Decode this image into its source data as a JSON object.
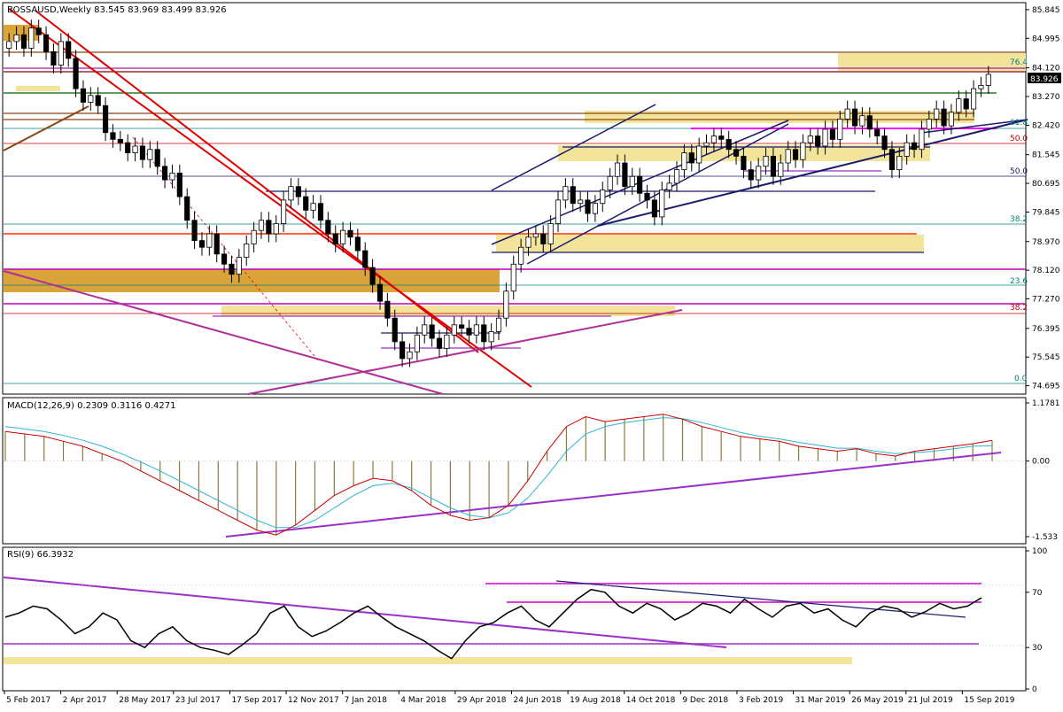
{
  "header": {
    "main": "BOSSAUSD,Weekly  83.545 83.969 83.499 83.926",
    "macd": "MACD(12,26,9) 0.2309 0.3116 0.4271",
    "rsi": "RSI(9) 66.3932"
  },
  "price_axis": {
    "ticks": [
      "85.845",
      "84.995",
      "84.120",
      "83.270",
      "82.420",
      "81.545",
      "80.695",
      "79.845",
      "78.970",
      "78.120",
      "77.270",
      "76.395",
      "75.545",
      "74.695"
    ],
    "current": "83.926"
  },
  "macd_axis": {
    "ticks": [
      "1.1781",
      "0.00",
      "-1.533"
    ]
  },
  "rsi_axis": {
    "ticks": [
      "100",
      "70",
      "30",
      "0"
    ]
  },
  "time_axis": [
    "5 Feb 2017",
    "2 Apr 2017",
    "28 May 2017",
    "23 Jul 2017",
    "17 Sep 2017",
    "12 Nov 2017",
    "7 Jan 2018",
    "4 Mar 2018",
    "29 Apr 2018",
    "24 Jun 2018",
    "19 Aug 2018",
    "14 Oct 2018",
    "9 Dec 2018",
    "3 Feb 2019",
    "31 Mar 2019",
    "26 May 2019",
    "21 Jul 2019",
    "15 Sep 2019"
  ],
  "fib_labels": {
    "right": [
      "76.4",
      "61.8",
      "50.0",
      "50.0",
      "38.2",
      "23.6",
      "38.2",
      "0.0"
    ]
  },
  "colors": {
    "bull": "#ffffff",
    "bear": "#000000",
    "fibzone": "#f2e49a",
    "orangezone": "#d9a53a",
    "redline": "#ff0000",
    "purple": "#9b30c8",
    "navy": "#1a1a6e",
    "macd_hist": "#8a7a3a",
    "signal": "#2eb4d6",
    "macd_line": "#cc0000"
  },
  "chart_data": [
    {
      "type": "candlestick",
      "title": "BOSSAUSD,Weekly",
      "ylim": [
        74.5,
        86.0
      ],
      "y_ticks": [
        85.845,
        84.995,
        84.12,
        83.27,
        82.42,
        81.545,
        80.695,
        79.845,
        78.97,
        78.12,
        77.27,
        76.395,
        75.545,
        74.695
      ],
      "x_labels": [
        "5 Feb 2017",
        "2 Apr 2017",
        "28 May 2017",
        "23 Jul 2017",
        "17 Sep 2017",
        "12 Nov 2017",
        "7 Jan 2018",
        "4 Mar 2018",
        "29 Apr 2018",
        "24 Jun 2018",
        "19 Aug 2018",
        "14 Oct 2018",
        "9 Dec 2018",
        "3 Feb 2019",
        "31 Mar 2019",
        "26 May 2019",
        "21 Jul 2019",
        "15 Sep 2019"
      ],
      "close": [
        84.9,
        85.1,
        84.7,
        85.3,
        85.1,
        84.6,
        84.2,
        84.9,
        84.4,
        83.5,
        83.1,
        83.3,
        83.0,
        82.2,
        82.0,
        81.9,
        81.6,
        81.8,
        81.4,
        81.7,
        81.2,
        80.8,
        81.0,
        80.3,
        79.6,
        79.0,
        78.8,
        79.2,
        78.6,
        78.3,
        78.0,
        78.5,
        78.9,
        79.3,
        79.6,
        79.2,
        79.5,
        80.2,
        80.6,
        80.3,
        79.9,
        80.1,
        79.6,
        79.2,
        78.9,
        79.3,
        79.1,
        78.7,
        78.2,
        77.7,
        77.2,
        76.7,
        76.0,
        75.5,
        75.7,
        76.2,
        76.5,
        76.1,
        75.8,
        76.2,
        76.5,
        76.4,
        76.2,
        76.5,
        76.0,
        76.3,
        76.7,
        77.5,
        78.3,
        78.8,
        79.1,
        79.2,
        78.9,
        79.5,
        80.2,
        80.6,
        80.1,
        80.2,
        79.8,
        80.1,
        80.5,
        80.9,
        81.3,
        80.6,
        80.9,
        80.4,
        80.2,
        79.7,
        80.5,
        80.7,
        81.1,
        81.6,
        81.3,
        81.8,
        81.9,
        82.1,
        82.0,
        81.7,
        81.5,
        81.1,
        80.8,
        81.2,
        81.5,
        80.9,
        81.3,
        81.7,
        81.4,
        81.9,
        82.1,
        81.8,
        82.3,
        82.0,
        82.6,
        82.9,
        82.4,
        82.7,
        82.3,
        82.1,
        81.7,
        81.1,
        81.5,
        81.9,
        81.7,
        82.3,
        82.6,
        82.9,
        82.4,
        82.8,
        83.2,
        82.9,
        83.5,
        83.6,
        83.926
      ]
    },
    {
      "type": "line",
      "title": "MACD(12,26,9)",
      "ylim": [
        -1.533,
        1.1781
      ],
      "series": [
        {
          "name": "MACD",
          "values": [
            0.6,
            0.55,
            0.5,
            0.4,
            0.3,
            0.15,
            0.0,
            -0.2,
            -0.4,
            -0.6,
            -0.8,
            -1.0,
            -1.2,
            -1.4,
            -1.5,
            -1.3,
            -1.0,
            -0.7,
            -0.5,
            -0.35,
            -0.4,
            -0.6,
            -0.9,
            -1.1,
            -1.2,
            -1.15,
            -0.9,
            -0.4,
            0.2,
            0.7,
            0.9,
            0.8,
            0.85,
            0.9,
            0.95,
            0.85,
            0.7,
            0.6,
            0.5,
            0.45,
            0.4,
            0.3,
            0.25,
            0.2,
            0.25,
            0.15,
            0.1,
            0.2,
            0.25,
            0.3,
            0.35,
            0.42
          ]
        },
        {
          "name": "Signal",
          "values": [
            0.7,
            0.65,
            0.6,
            0.52,
            0.42,
            0.3,
            0.15,
            -0.02,
            -0.2,
            -0.4,
            -0.6,
            -0.8,
            -1.0,
            -1.2,
            -1.35,
            -1.35,
            -1.2,
            -0.95,
            -0.7,
            -0.5,
            -0.45,
            -0.55,
            -0.75,
            -0.95,
            -1.1,
            -1.15,
            -1.05,
            -0.75,
            -0.3,
            0.2,
            0.55,
            0.7,
            0.78,
            0.83,
            0.88,
            0.86,
            0.78,
            0.68,
            0.58,
            0.5,
            0.45,
            0.38,
            0.32,
            0.26,
            0.26,
            0.2,
            0.15,
            0.17,
            0.2,
            0.25,
            0.3,
            0.31
          ]
        }
      ]
    },
    {
      "type": "line",
      "title": "RSI(9)",
      "ylim": [
        0,
        100
      ],
      "y_ticks": [
        100,
        70,
        30,
        0
      ],
      "series": [
        {
          "name": "RSI",
          "values": [
            52,
            55,
            60,
            58,
            50,
            40,
            45,
            55,
            50,
            35,
            30,
            40,
            45,
            35,
            30,
            28,
            25,
            32,
            40,
            55,
            60,
            45,
            38,
            42,
            48,
            55,
            60,
            52,
            45,
            40,
            35,
            28,
            22,
            35,
            45,
            48,
            55,
            60,
            50,
            45,
            55,
            65,
            72,
            70,
            60,
            55,
            62,
            58,
            50,
            55,
            62,
            60,
            55,
            65,
            58,
            52,
            60,
            62,
            55,
            58,
            50,
            45,
            55,
            60,
            58,
            52,
            56,
            62,
            58,
            60,
            66
          ]
        }
      ]
    }
  ]
}
